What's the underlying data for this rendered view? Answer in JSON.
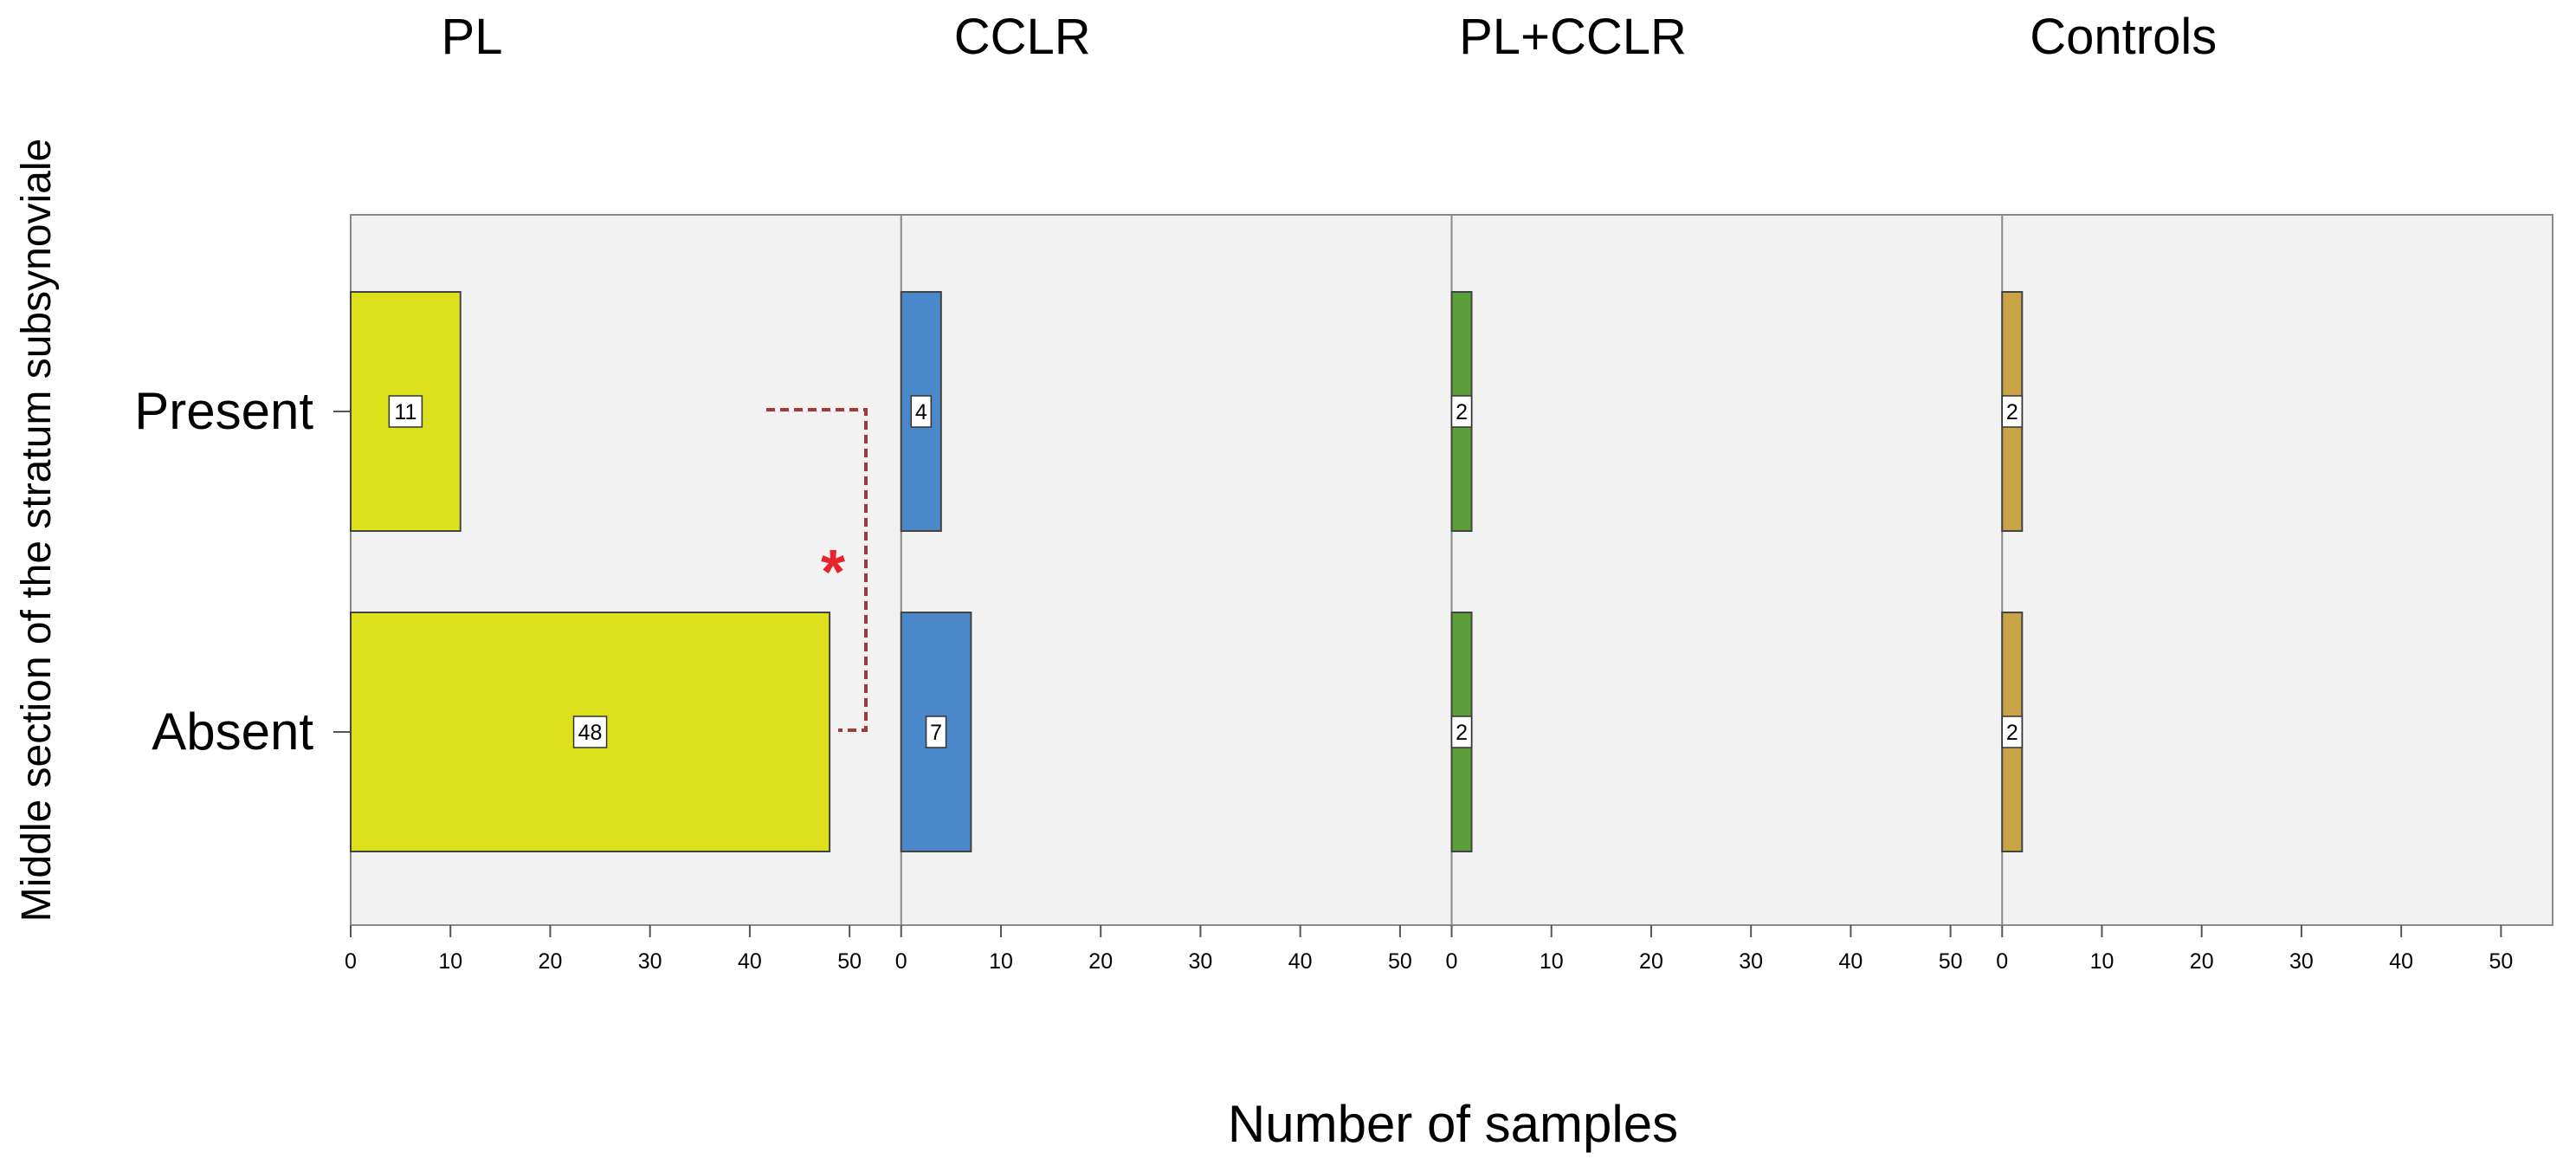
{
  "chart_data": {
    "type": "bar",
    "orientation": "horizontal",
    "ylabel": "Middle section of the stratum subsynoviale",
    "xlabel": "Number of samples",
    "categories": [
      "Present",
      "Absent"
    ],
    "xlim": [
      0,
      55
    ],
    "xticks": [
      0,
      10,
      20,
      30,
      40,
      50
    ],
    "panels": [
      {
        "name": "PL",
        "color": "#dde01c",
        "values": [
          11,
          48
        ]
      },
      {
        "name": "CCLR",
        "color": "#4a88c9",
        "values": [
          4,
          7
        ]
      },
      {
        "name": "PL+CCLR",
        "color": "#5c9e3a",
        "values": [
          2,
          2
        ]
      },
      {
        "name": "Controls",
        "color": "#c9a447",
        "values": [
          2,
          2
        ]
      }
    ],
    "annotations": [
      {
        "type": "significance",
        "symbol": "*",
        "panel": "PL",
        "between": [
          "Present",
          "Absent"
        ],
        "color": "#e8232a",
        "bracket_color": "#a33a3a"
      }
    ]
  }
}
